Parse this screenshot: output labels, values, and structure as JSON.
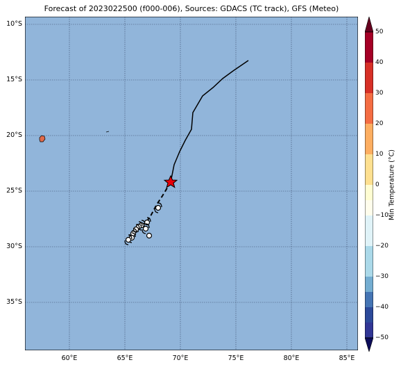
{
  "title": "Forecast of 2023022500 (f000-006), Sources: GDACS (TC track), GFS (Meteo)",
  "colors": {
    "ocean": "#91b5da",
    "land": "#e06a4a",
    "track": "#000000",
    "storm_marker": "#e8000b",
    "grid": "#3a4a6a"
  },
  "map": {
    "lat_labels": [
      "10°S",
      "15°S",
      "20°S",
      "25°S",
      "30°S",
      "35°S"
    ],
    "lon_labels": [
      "60°E",
      "65°E",
      "70°E",
      "75°E",
      "80°E",
      "85°E"
    ],
    "current_position": {
      "lon": 69.1,
      "lat": -24.2,
      "icon": "star-icon"
    },
    "track_icons": "tropical-storm-icon"
  },
  "colorbar": {
    "label": "Min Temperature (°C)",
    "ticks": [
      "50",
      "40",
      "30",
      "20",
      "10",
      "0",
      "−10",
      "−20",
      "−30",
      "−40",
      "−50"
    ],
    "colors": [
      "#a50026",
      "#d73027",
      "#f46d43",
      "#fdae61",
      "#fee090",
      "#ffffbf",
      "#e0f3f8",
      "#abd9e9",
      "#74add1",
      "#4575b4",
      "#313695"
    ]
  }
}
